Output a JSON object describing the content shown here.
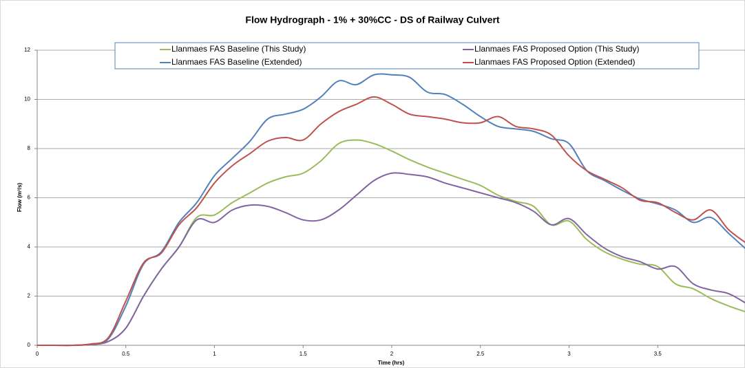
{
  "chart_data": {
    "type": "line",
    "title": "Flow Hydrograph - 1% + 30%CC - DS of Railway Culvert",
    "x_label": "Time (hrs)",
    "y_label": "Flow (m³/s)",
    "x": [
      0,
      0.1,
      0.2,
      0.3,
      0.4,
      0.5,
      0.6,
      0.7,
      0.8,
      0.9,
      1.0,
      1.1,
      1.2,
      1.3,
      1.4,
      1.5,
      1.6,
      1.7,
      1.8,
      1.9,
      2.0,
      2.1,
      2.2,
      2.3,
      2.4,
      2.5,
      2.6,
      2.7,
      2.8,
      2.9,
      3.0,
      3.1,
      3.2,
      3.3,
      3.4,
      3.5,
      3.6,
      3.7,
      3.8,
      3.9,
      4.0
    ],
    "series": [
      {
        "name": "Llanmaes FAS Baseline (This Study)",
        "color": "#9bbb59",
        "values": [
          0,
          0,
          0,
          0.03,
          0.15,
          0.7,
          2.0,
          3.1,
          4.0,
          5.2,
          5.3,
          5.8,
          6.2,
          6.6,
          6.85,
          7.0,
          7.5,
          8.2,
          8.35,
          8.2,
          7.9,
          7.55,
          7.25,
          7.0,
          6.75,
          6.5,
          6.1,
          5.85,
          5.65,
          4.9,
          5.05,
          4.3,
          3.8,
          3.5,
          3.3,
          3.2,
          2.5,
          2.3,
          1.9,
          1.6,
          1.35
        ]
      },
      {
        "name": "Llanmaes FAS Proposed Option (This Study)",
        "color": "#8064a2",
        "values": [
          0,
          0,
          0,
          0.03,
          0.15,
          0.7,
          2.0,
          3.1,
          4.0,
          5.1,
          5.0,
          5.5,
          5.7,
          5.65,
          5.4,
          5.1,
          5.1,
          5.5,
          6.1,
          6.7,
          7.0,
          6.95,
          6.85,
          6.6,
          6.4,
          6.2,
          6.0,
          5.8,
          5.45,
          4.9,
          5.15,
          4.5,
          3.95,
          3.6,
          3.4,
          3.1,
          3.2,
          2.5,
          2.25,
          2.1,
          1.7
        ]
      },
      {
        "name": "Llanmaes FAS Baseline (Extended)",
        "color": "#4f81bd",
        "values": [
          0,
          0,
          0,
          0.05,
          0.25,
          1.6,
          3.3,
          3.8,
          5.0,
          5.8,
          6.9,
          7.6,
          8.3,
          9.2,
          9.4,
          9.6,
          10.1,
          10.75,
          10.6,
          11.0,
          11.0,
          10.9,
          10.3,
          10.2,
          9.8,
          9.3,
          8.9,
          8.8,
          8.7,
          8.4,
          8.2,
          7.1,
          6.7,
          6.3,
          5.95,
          5.75,
          5.5,
          5.0,
          5.2,
          4.55,
          3.9
        ]
      },
      {
        "name": "Llanmaes FAS Proposed Option (Extended)",
        "color": "#c0504d",
        "values": [
          0,
          0,
          0,
          0.05,
          0.3,
          1.8,
          3.35,
          3.75,
          4.9,
          5.6,
          6.6,
          7.3,
          7.8,
          8.3,
          8.45,
          8.35,
          9.0,
          9.5,
          9.8,
          10.1,
          9.8,
          9.4,
          9.3,
          9.2,
          9.05,
          9.05,
          9.3,
          8.9,
          8.8,
          8.55,
          7.7,
          7.1,
          6.75,
          6.4,
          5.9,
          5.8,
          5.4,
          5.1,
          5.5,
          4.7,
          4.15
        ]
      }
    ],
    "xlim": [
      0,
      4
    ],
    "xticks": [
      0,
      0.5,
      1,
      1.5,
      2,
      2.5,
      3,
      3.5
    ],
    "ylim": [
      0,
      12
    ],
    "yticks": [
      0,
      2,
      4,
      6,
      8,
      10,
      12
    ],
    "grid": true
  }
}
